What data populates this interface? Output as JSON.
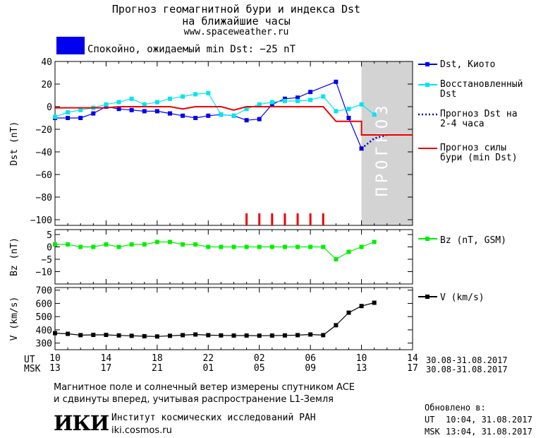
{
  "header": {
    "title_line1": "Прогноз геомагнитной бури и индекса Dst",
    "title_line2": "на ближайшие часы",
    "website": "www.spaceweather.ru",
    "status_text": "Спокойно, ожидаемый min Dst: −25 nT",
    "status_color": "#0000ee"
  },
  "chart_data": [
    {
      "type": "line",
      "ylabel": "Dst (nT)",
      "ylim": [
        -105,
        40
      ],
      "yticks": [
        40,
        20,
        0,
        -20,
        -40,
        -60,
        -80,
        -100
      ],
      "x_hour_offsets": [
        0,
        1,
        2,
        3,
        4,
        5,
        6,
        7,
        8,
        9,
        10,
        11,
        12,
        13,
        14,
        15,
        16,
        17,
        18,
        19,
        20,
        21,
        22,
        23,
        24,
        25
      ],
      "forecast_region_label": "ПРОГНОЗ",
      "forecast_region_color": "#d3d3d3",
      "series": [
        {
          "name": "Dst, Киото",
          "color": "#0000ee",
          "values": [
            -10,
            -10,
            -10,
            -6,
            0,
            -2,
            -3,
            -4,
            -4,
            -6,
            -8,
            -10,
            -8,
            -7,
            -8,
            -12,
            -11,
            2,
            7,
            8,
            13,
            null,
            22,
            -10,
            -37
          ]
        },
        {
          "name": "Восстановленный Dst",
          "color": "#00e5ee",
          "values": [
            -9,
            -5,
            -3,
            -1,
            2,
            4,
            7,
            2,
            4,
            7,
            9,
            11,
            12,
            -7,
            -8,
            -2,
            2,
            4,
            5,
            5,
            6,
            9,
            -4,
            -2,
            2,
            -7
          ]
        },
        {
          "name": "Прогноз Dst на 2-4 часа",
          "color": "#0000aa",
          "style": "dotted",
          "points": [
            [
              24,
              -37
            ],
            [
              25,
              -28
            ],
            [
              26,
              -25
            ]
          ]
        },
        {
          "name": "Прогноз силы бури (min Dst)",
          "color": "#ee0000",
          "points": [
            [
              0,
              -1
            ],
            [
              4,
              -1
            ],
            [
              5,
              0
            ],
            [
              8,
              0
            ],
            [
              9,
              0
            ],
            [
              10,
              -2
            ],
            [
              11,
              0
            ],
            [
              13,
              0
            ],
            [
              14,
              -3
            ],
            [
              15,
              0
            ],
            [
              21,
              0
            ],
            [
              22,
              -13
            ],
            [
              24,
              -13
            ],
            [
              24,
              -25
            ],
            [
              28,
              -25
            ]
          ]
        }
      ],
      "storm_marker_hours": [
        15,
        16,
        17,
        18,
        19,
        20,
        21
      ],
      "storm_marker_color": "#ee0000"
    },
    {
      "type": "line",
      "ylabel": "Bz (nT)",
      "ylim": [
        -15,
        7
      ],
      "yticks": [
        5,
        0,
        -5,
        -10
      ],
      "series": [
        {
          "name": "Bz (nT, GSM)",
          "color": "#00ee00",
          "values": [
            1,
            1,
            0,
            0,
            1,
            0,
            1,
            1,
            2,
            2,
            1,
            1,
            0,
            0,
            0,
            0,
            0,
            0,
            0,
            0,
            0,
            0,
            -5,
            -2,
            0,
            2
          ]
        }
      ]
    },
    {
      "type": "line",
      "ylabel": "V (km/s)",
      "ylim": [
        250,
        720
      ],
      "yticks": [
        700,
        600,
        500,
        400,
        300
      ],
      "series": [
        {
          "name": "V (km/s)",
          "color": "#000000",
          "values": [
            375,
            370,
            360,
            362,
            362,
            358,
            355,
            352,
            350,
            355,
            360,
            365,
            360,
            358,
            357,
            357,
            356,
            357,
            358,
            360,
            365,
            360,
            435,
            530,
            580,
            605
          ]
        }
      ]
    }
  ],
  "time_axis": {
    "ut_label": "UT",
    "msk_label": "MSK",
    "ut_ticks": [
      "10",
      "14",
      "18",
      "22",
      "02",
      "06",
      "10",
      "14"
    ],
    "msk_ticks": [
      "13",
      "17",
      "21",
      "01",
      "05",
      "09",
      "13",
      "17"
    ],
    "ut_range": "30.08-31.08.2017",
    "msk_range": "30.08-31.08.2017"
  },
  "footer": {
    "note_line1": "Магнитное поле и солнечный ветер измерены спутником ACE",
    "note_line2": "и сдвинуты вперед, учитывая распространение L1-Земля",
    "logo_text": "ИКИ",
    "institute": "Институт космических исследований РАН",
    "institute_site": "iki.cosmos.ru",
    "updated_label": "Обновлено в:",
    "updated_ut_label": "UT",
    "updated_ut": "10:04, 31.08.2017",
    "updated_msk_label": "MSK",
    "updated_msk": "13:04, 31.08.2017"
  }
}
